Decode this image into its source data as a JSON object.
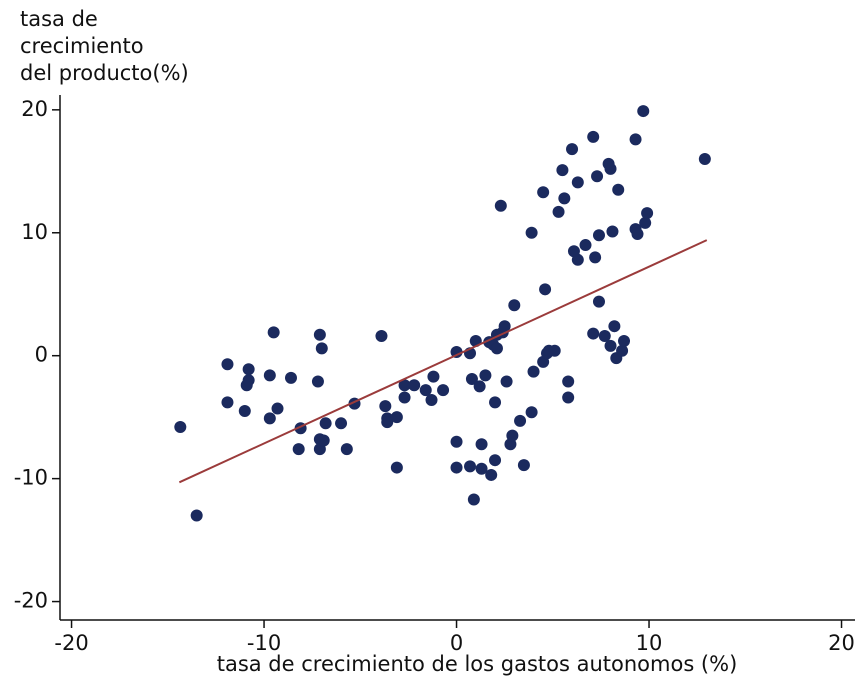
{
  "chart_data": {
    "type": "scatter",
    "ylabel": [
      "tasa de",
      "crecimiento",
      "del producto(%)"
    ],
    "xlabel": "tasa de crecimiento de los gastos autonomos  (%)",
    "xlim": [
      -20.6,
      20.7
    ],
    "ylim": [
      -21.5,
      20.8
    ],
    "xticks": [
      -20,
      -10,
      0,
      10,
      20
    ],
    "yticks": [
      -20,
      -10,
      0,
      10,
      20
    ],
    "grid": false,
    "color": "#1b2a5e",
    "x": [
      -14.35,
      -13.5,
      -11.9,
      -11.9,
      -11.0,
      -10.8,
      -10.9,
      -10.8,
      -9.7,
      -9.7,
      -9.5,
      -9.3,
      -8.6,
      -8.2,
      -8.1,
      -7.1,
      -7.0,
      -7.2,
      -7.1,
      -7.1,
      -6.9,
      -6.8,
      -6.0,
      -5.7,
      -5.3,
      -3.9,
      -3.7,
      -3.6,
      -3.6,
      -3.1,
      -3.1,
      -2.7,
      -2.7,
      -2.2,
      -1.6,
      -1.3,
      -1.2,
      -0.7,
      0,
      0,
      0,
      0.7,
      0.8,
      0.7,
      0.9,
      1.0,
      1.2,
      1.3,
      1.3,
      1.5,
      1.7,
      1.8,
      1.9,
      2.0,
      2.0,
      2.1,
      2.1,
      2.3,
      2.4,
      2.5,
      2.6,
      2.8,
      2.9,
      3.0,
      3.3,
      3.5,
      3.9,
      3.9,
      4.0,
      4.5,
      4.5,
      4.6,
      4.7,
      4.8,
      5.1,
      5.3,
      5.5,
      5.6,
      5.8,
      5.8,
      6.0,
      6.1,
      6.3,
      6.3,
      6.7,
      7.1,
      7.1,
      7.2,
      7.3,
      7.4,
      7.4,
      7.7,
      7.9,
      8.0,
      8.0,
      8.1,
      8.2,
      8.3,
      8.4,
      8.6,
      8.7,
      9.3,
      9.3,
      9.4,
      9.7,
      9.8,
      9.9,
      12.9
    ],
    "values": [
      -5.8,
      -13.0,
      -0.7,
      -3.8,
      -4.5,
      -1.1,
      -2.4,
      -2.0,
      -1.6,
      -5.1,
      1.9,
      -4.3,
      -1.8,
      -7.6,
      -5.9,
      1.7,
      0.6,
      -2.1,
      -6.8,
      -7.6,
      -6.9,
      -5.5,
      -5.5,
      -7.6,
      -3.9,
      1.6,
      -4.1,
      -5.1,
      -5.4,
      -5.0,
      -9.1,
      -2.4,
      -3.4,
      -2.4,
      -2.8,
      -3.6,
      -1.7,
      -2.8,
      0.3,
      -7.0,
      -9.1,
      0.2,
      -1.9,
      -9.0,
      -11.7,
      1.2,
      -2.5,
      -7.2,
      -9.2,
      -1.6,
      1.1,
      -9.7,
      0.9,
      -8.5,
      -3.8,
      1.7,
      0.6,
      12.2,
      1.9,
      2.4,
      -2.1,
      -7.2,
      -6.5,
      4.1,
      -5.3,
      -8.9,
      10.0,
      -4.6,
      -1.3,
      13.3,
      -0.5,
      5.4,
      0.2,
      0.4,
      0.4,
      11.7,
      15.1,
      12.8,
      -2.1,
      -3.4,
      16.8,
      8.5,
      14.1,
      7.8,
      9.0,
      1.8,
      17.8,
      8.0,
      14.6,
      9.8,
      4.4,
      1.6,
      15.6,
      15.2,
      0.8,
      10.1,
      2.4,
      -0.2,
      13.5,
      0.4,
      1.2,
      17.6,
      10.3,
      9.9,
      19.9,
      10.8,
      11.6,
      16.0
    ],
    "fit": {
      "color": "#9b3b3b",
      "x": [
        -14.4,
        13.0
      ],
      "values": [
        -10.3,
        9.4
      ]
    }
  }
}
